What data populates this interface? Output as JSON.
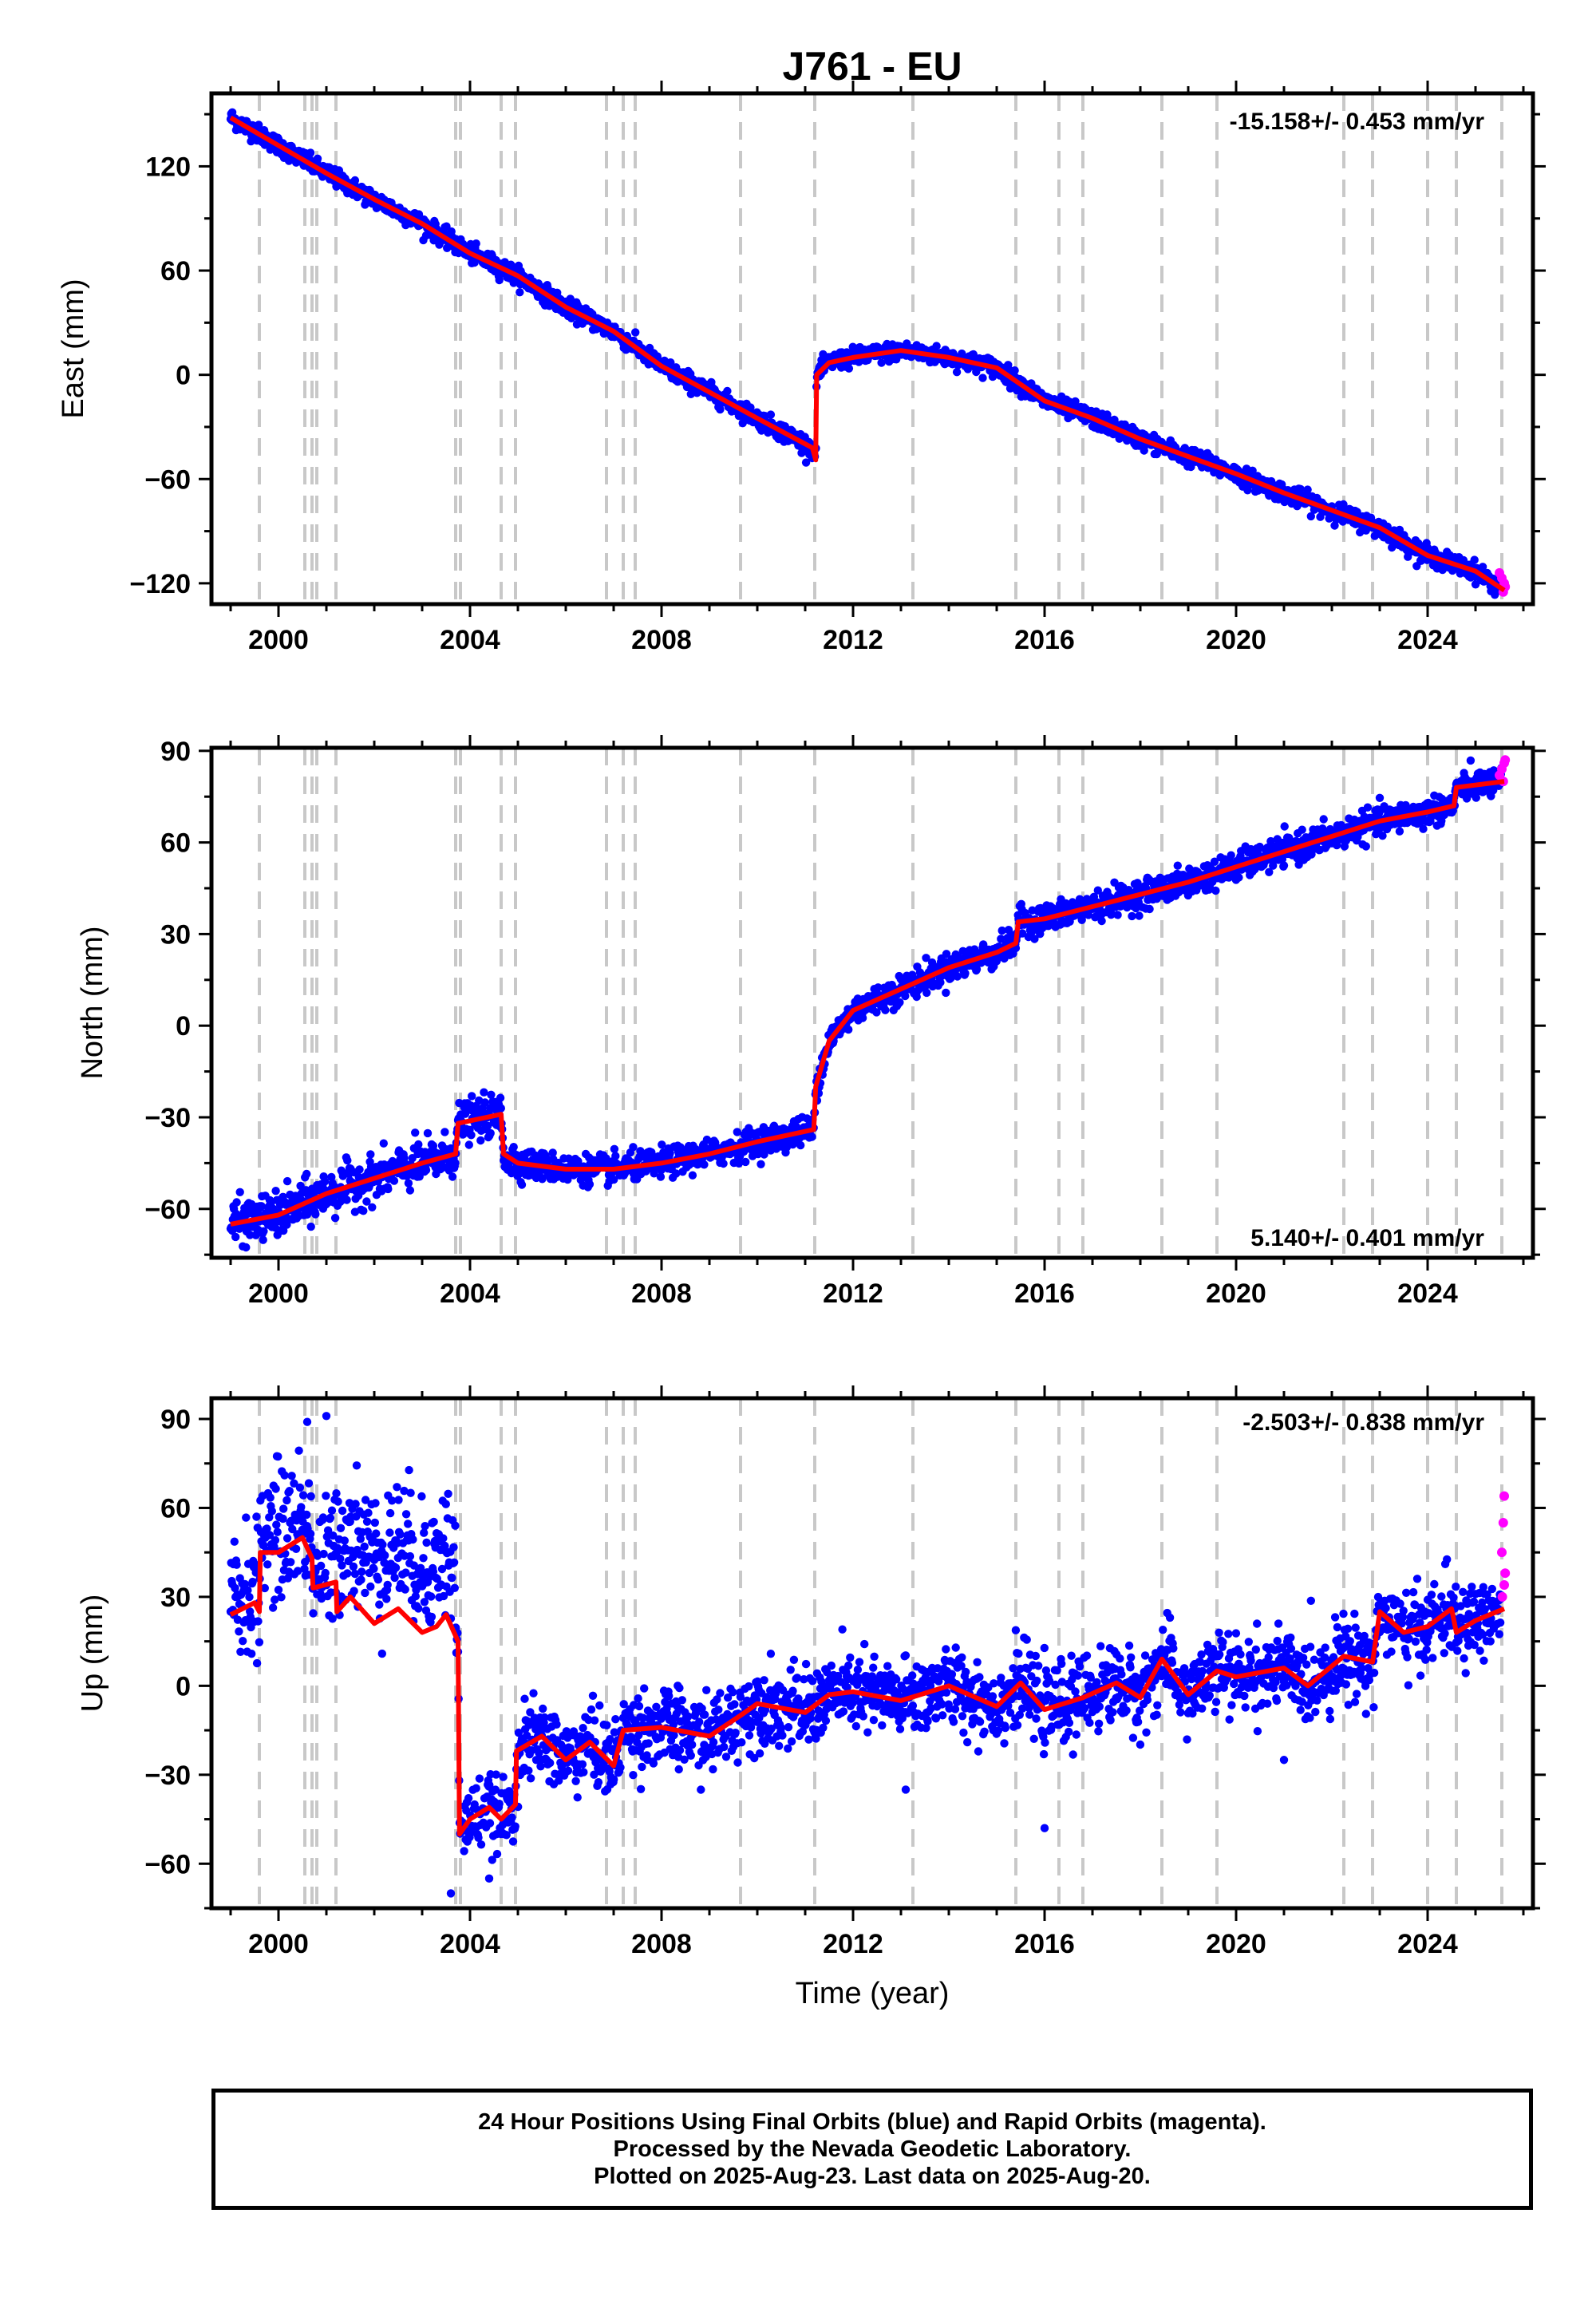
{
  "figure": {
    "title": "J761 - EU",
    "xlabel": "Time (year)",
    "colors": {
      "final": "#0000ff",
      "rapid": "#ff00ff",
      "model": "#ff0000",
      "events": "#c8c8c8"
    },
    "caption": [
      "24 Hour Positions Using Final Orbits (blue) and Rapid Orbits (magenta).",
      "Processed by the Nevada Geodetic Laboratory.",
      "Plotted on 2025-Aug-23. Last data on 2025-Aug-20."
    ]
  },
  "chart_data": [
    {
      "type": "scatter",
      "component": "east",
      "ylabel": "East (mm)",
      "rate": "-15.158+/- 0.453 mm/yr",
      "xlim": [
        1998.6,
        2026.2
      ],
      "ylim": [
        -132,
        162
      ],
      "xticks": [
        2000,
        2004,
        2008,
        2012,
        2016,
        2020,
        2024
      ],
      "yticks": [
        120,
        60,
        0,
        -60,
        -120
      ],
      "event_lines": [
        1999.6,
        2000.55,
        2000.7,
        2000.8,
        2001.2,
        2003.7,
        2003.8,
        2004.65,
        2004.95,
        2006.85,
        2007.2,
        2007.45,
        2009.65,
        2011.2,
        2013.25,
        2015.4,
        2016.3,
        2016.8,
        2018.45,
        2019.6,
        2022.25,
        2022.85,
        2024.0,
        2024.6,
        2025.55
      ],
      "series": [
        {
          "role": "model",
          "points": [
            [
              1999.0,
              148
            ],
            [
              2000.0,
              132
            ],
            [
              2001.0,
              116
            ],
            [
              2002.0,
              101
            ],
            [
              2003.0,
              87
            ],
            [
              2004.0,
              70
            ],
            [
              2005.0,
              57
            ],
            [
              2006.0,
              39
            ],
            [
              2007.0,
              25
            ],
            [
              2008.0,
              5
            ],
            [
              2009.0,
              -10
            ],
            [
              2010.0,
              -25
            ],
            [
              2011.15,
              -42
            ],
            [
              2011.22,
              -49
            ],
            [
              2011.24,
              0
            ],
            [
              2011.5,
              7
            ],
            [
              2012.0,
              10
            ],
            [
              2013.0,
              14
            ],
            [
              2014.0,
              10
            ],
            [
              2015.0,
              4
            ],
            [
              2016.0,
              -15
            ],
            [
              2017.0,
              -25
            ],
            [
              2018.0,
              -37
            ],
            [
              2019.0,
              -47
            ],
            [
              2020.0,
              -57
            ],
            [
              2021.0,
              -68
            ],
            [
              2022.0,
              -78
            ],
            [
              2023.0,
              -88
            ],
            [
              2024.0,
              -104
            ],
            [
              2025.0,
              -113
            ],
            [
              2025.6,
              -124
            ]
          ]
        },
        {
          "role": "rapid",
          "points": [
            [
              2025.5,
              -114
            ],
            [
              2025.55,
              -117
            ],
            [
              2025.6,
              -120
            ],
            [
              2025.62,
              -122
            ],
            [
              2025.58,
              -125
            ]
          ]
        }
      ]
    },
    {
      "type": "scatter",
      "component": "north",
      "ylabel": "North (mm)",
      "rate": "5.140+/- 0.401 mm/yr",
      "xlim": [
        1998.6,
        2026.2
      ],
      "ylim": [
        -76,
        91
      ],
      "xticks": [
        2000,
        2004,
        2008,
        2012,
        2016,
        2020,
        2024
      ],
      "yticks": [
        90,
        60,
        30,
        0,
        -30,
        -60
      ],
      "event_lines": [
        1999.6,
        2000.55,
        2000.7,
        2000.8,
        2001.2,
        2003.7,
        2003.8,
        2004.65,
        2004.95,
        2006.85,
        2007.2,
        2007.45,
        2009.65,
        2011.2,
        2013.25,
        2015.4,
        2016.3,
        2016.8,
        2018.45,
        2019.6,
        2022.25,
        2022.85,
        2024.0,
        2024.6,
        2025.55
      ],
      "series": [
        {
          "role": "model",
          "points": [
            [
              1999.0,
              -65
            ],
            [
              2000.0,
              -62
            ],
            [
              2001.0,
              -55
            ],
            [
              2002.0,
              -50
            ],
            [
              2003.0,
              -45
            ],
            [
              2003.7,
              -42
            ],
            [
              2003.75,
              -32
            ],
            [
              2004.65,
              -29
            ],
            [
              2004.7,
              -42
            ],
            [
              2005.0,
              -45
            ],
            [
              2006.0,
              -47
            ],
            [
              2007.0,
              -47
            ],
            [
              2008.0,
              -45
            ],
            [
              2009.0,
              -42
            ],
            [
              2010.0,
              -38
            ],
            [
              2011.18,
              -34
            ],
            [
              2011.22,
              -20
            ],
            [
              2011.5,
              -5
            ],
            [
              2012.0,
              5
            ],
            [
              2013.0,
              12
            ],
            [
              2014.0,
              19
            ],
            [
              2015.0,
              24
            ],
            [
              2015.4,
              27
            ],
            [
              2015.45,
              34
            ],
            [
              2016.0,
              35
            ],
            [
              2017.0,
              39
            ],
            [
              2018.0,
              43
            ],
            [
              2019.0,
              47
            ],
            [
              2020.0,
              52
            ],
            [
              2021.0,
              57
            ],
            [
              2022.0,
              62
            ],
            [
              2023.0,
              67
            ],
            [
              2024.0,
              70
            ],
            [
              2024.55,
              72
            ],
            [
              2024.6,
              78
            ],
            [
              2025.6,
              80
            ]
          ]
        },
        {
          "role": "rapid",
          "points": [
            [
              2025.5,
              82
            ],
            [
              2025.55,
              84
            ],
            [
              2025.6,
              86
            ],
            [
              2025.62,
              87
            ],
            [
              2025.58,
              80
            ]
          ]
        }
      ]
    },
    {
      "type": "scatter",
      "component": "up",
      "ylabel": "Up (mm)",
      "rate": "-2.503+/- 0.838 mm/yr",
      "xlim": [
        1998.6,
        2026.2
      ],
      "ylim": [
        -75,
        97
      ],
      "xticks": [
        2000,
        2004,
        2008,
        2012,
        2016,
        2020,
        2024
      ],
      "yticks": [
        90,
        60,
        30,
        0,
        -30,
        -60
      ],
      "event_lines": [
        1999.6,
        2000.55,
        2000.7,
        2000.8,
        2001.2,
        2003.7,
        2003.8,
        2004.65,
        2004.95,
        2006.85,
        2007.2,
        2007.45,
        2009.65,
        2011.2,
        2013.25,
        2015.4,
        2016.3,
        2016.8,
        2018.45,
        2019.6,
        2022.25,
        2022.85,
        2024.0,
        2024.6,
        2025.55
      ],
      "series": [
        {
          "role": "model",
          "points": [
            [
              1999.0,
              24
            ],
            [
              1999.5,
              28
            ],
            [
              1999.6,
              25
            ],
            [
              1999.62,
              45
            ],
            [
              2000.0,
              45
            ],
            [
              2000.5,
              50
            ],
            [
              2000.7,
              43
            ],
            [
              2000.72,
              33
            ],
            [
              2001.2,
              35
            ],
            [
              2001.22,
              25
            ],
            [
              2001.5,
              30
            ],
            [
              2002.0,
              21
            ],
            [
              2002.5,
              26
            ],
            [
              2003.0,
              18
            ],
            [
              2003.3,
              20
            ],
            [
              2003.5,
              24
            ],
            [
              2003.75,
              15
            ],
            [
              2003.78,
              -50
            ],
            [
              2004.0,
              -45
            ],
            [
              2004.4,
              -41
            ],
            [
              2004.65,
              -45
            ],
            [
              2004.95,
              -40
            ],
            [
              2004.97,
              -22
            ],
            [
              2005.5,
              -17
            ],
            [
              2006.0,
              -25
            ],
            [
              2006.5,
              -19
            ],
            [
              2007.0,
              -27
            ],
            [
              2007.2,
              -15
            ],
            [
              2008.0,
              -14
            ],
            [
              2009.0,
              -17
            ],
            [
              2009.65,
              -10
            ],
            [
              2010.0,
              -6
            ],
            [
              2011.0,
              -9
            ],
            [
              2011.5,
              -3
            ],
            [
              2012.0,
              -2
            ],
            [
              2013.0,
              -5
            ],
            [
              2014.0,
              0
            ],
            [
              2015.0,
              -7
            ],
            [
              2015.5,
              1
            ],
            [
              2016.0,
              -8
            ],
            [
              2016.8,
              -4
            ],
            [
              2017.5,
              1
            ],
            [
              2018.0,
              -4
            ],
            [
              2018.45,
              9
            ],
            [
              2019.0,
              -3
            ],
            [
              2019.6,
              5
            ],
            [
              2020.0,
              3
            ],
            [
              2021.0,
              6
            ],
            [
              2021.5,
              0
            ],
            [
              2022.25,
              10
            ],
            [
              2022.85,
              8
            ],
            [
              2023.0,
              25
            ],
            [
              2023.5,
              18
            ],
            [
              2024.0,
              20
            ],
            [
              2024.5,
              26
            ],
            [
              2024.6,
              18
            ],
            [
              2025.0,
              22
            ],
            [
              2025.6,
              26
            ]
          ]
        },
        {
          "role": "rapid",
          "points": [
            [
              2025.55,
              45
            ],
            [
              2025.58,
              55
            ],
            [
              2025.6,
              64
            ],
            [
              2025.62,
              38
            ],
            [
              2025.56,
              30
            ],
            [
              2025.6,
              34
            ]
          ]
        }
      ]
    }
  ]
}
